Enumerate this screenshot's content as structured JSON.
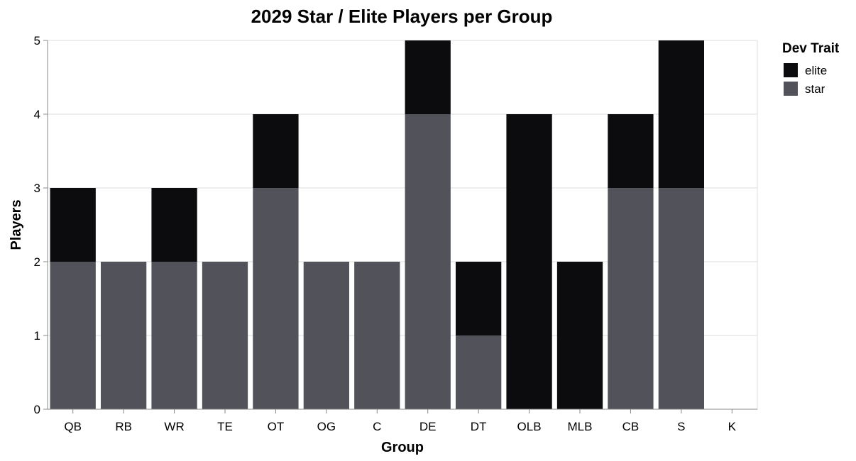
{
  "chart_data": {
    "type": "bar",
    "stacked": true,
    "title": "2029 Star / Elite Players per Group",
    "xlabel": "Group",
    "ylabel": "Players",
    "ylim": [
      0,
      5
    ],
    "yticks": [
      0,
      1,
      2,
      3,
      4,
      5
    ],
    "grid": true,
    "categories": [
      "QB",
      "RB",
      "WR",
      "TE",
      "OT",
      "OG",
      "C",
      "DE",
      "DT",
      "OLB",
      "MLB",
      "CB",
      "S",
      "K"
    ],
    "series": [
      {
        "name": "star",
        "color": "#52525b",
        "values": [
          2,
          2,
          2,
          2,
          3,
          2,
          2,
          4,
          1,
          0,
          0,
          3,
          3,
          0
        ]
      },
      {
        "name": "elite",
        "color": "#0c0c0f",
        "values": [
          1,
          0,
          1,
          0,
          1,
          0,
          0,
          1,
          1,
          4,
          2,
          1,
          2,
          0
        ]
      }
    ],
    "legend": {
      "title": "Dev Trait",
      "placement": "top-right",
      "entries": [
        {
          "label": "elite",
          "color": "#0c0c0f"
        },
        {
          "label": "star",
          "color": "#52525b"
        }
      ]
    }
  }
}
